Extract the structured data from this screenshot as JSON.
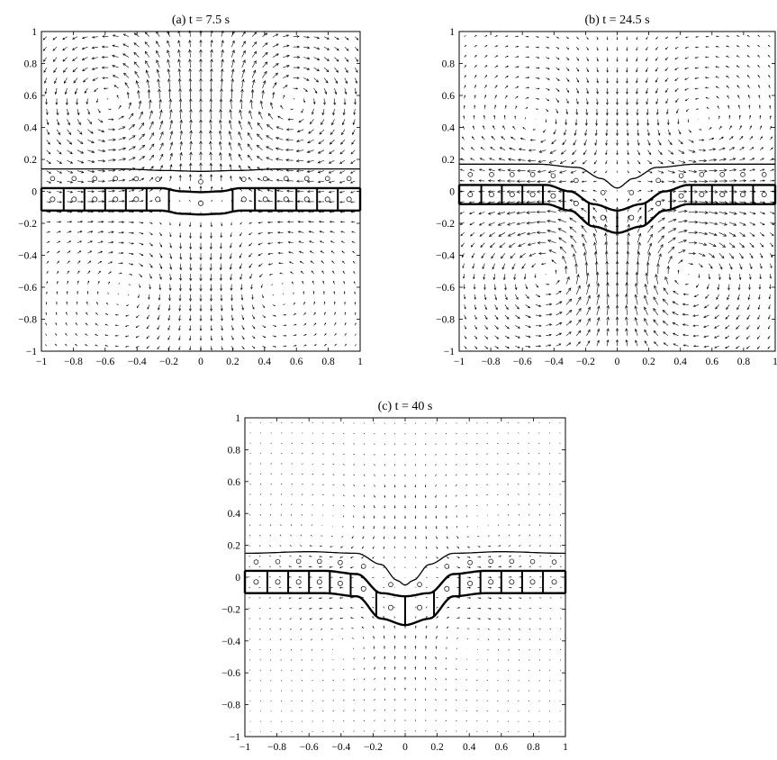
{
  "chart_data": [
    {
      "type": "quiver",
      "title": "(a) t = 7.5 s",
      "xlabel": "",
      "ylabel": "",
      "xlim": [
        -1,
        1
      ],
      "ylim": [
        -1,
        1
      ],
      "xticks": [
        "−1",
        "−0.8",
        "−0.6",
        "−0.4",
        "−0.2",
        "0",
        "0.2",
        "0.4",
        "0.6",
        "0.8",
        "1"
      ],
      "yticks": [
        "−1",
        "−0.8",
        "−0.6",
        "−0.4",
        "−0.2",
        "0",
        "0.2",
        "0.4",
        "0.6",
        "0.8",
        "1"
      ],
      "upper_interface": {
        "x": [
          -1,
          -0.5,
          -0.2,
          0,
          0.2,
          0.5,
          1
        ],
        "y": [
          0.14,
          0.14,
          0.13,
          0.125,
          0.13,
          0.14,
          0.14
        ]
      },
      "membrane_top": {
        "x": [
          -1,
          -0.25,
          -0.12,
          0,
          0.12,
          0.25,
          1
        ],
        "y": [
          0.02,
          0.02,
          0.0,
          -0.005,
          0.0,
          0.02,
          0.02
        ]
      },
      "membrane_bottom": {
        "x": [
          -1,
          -0.25,
          -0.12,
          0,
          0.12,
          0.25,
          1
        ],
        "y": [
          -0.12,
          -0.12,
          -0.14,
          -0.145,
          -0.14,
          -0.12,
          -0.12
        ]
      },
      "cell_dividers_x": [
        -0.86,
        -0.73,
        -0.6,
        -0.47,
        -0.34,
        -0.2,
        0.2,
        0.34,
        0.47,
        0.6,
        0.73,
        0.86
      ],
      "vortices": [
        {
          "x": -0.55,
          "y": 0.55,
          "strength": 1.0,
          "sense": "ccw"
        },
        {
          "x": 0.55,
          "y": 0.55,
          "strength": 1.0,
          "sense": "cw"
        },
        {
          "x": -0.45,
          "y": -0.6,
          "strength": 0.55,
          "sense": "cw"
        },
        {
          "x": 0.45,
          "y": -0.6,
          "strength": 0.55,
          "sense": "ccw"
        }
      ],
      "source": {
        "x": 0,
        "y": -0.08,
        "strength": 0.6
      }
    },
    {
      "type": "quiver",
      "title": "(b) t = 24.5 s",
      "xlabel": "",
      "ylabel": "",
      "xlim": [
        -1,
        1
      ],
      "ylim": [
        -1,
        1
      ],
      "xticks": [
        "−1",
        "−0.8",
        "−0.6",
        "−0.4",
        "−0.2",
        "0",
        "0.2",
        "0.4",
        "0.6",
        "0.8",
        "1"
      ],
      "yticks": [
        "−1",
        "−0.8",
        "−0.6",
        "−0.4",
        "−0.2",
        "0",
        "0.2",
        "0.4",
        "0.6",
        "0.8",
        "1"
      ],
      "upper_interface": {
        "x": [
          -1,
          -0.5,
          -0.25,
          -0.1,
          0,
          0.1,
          0.25,
          0.5,
          1
        ],
        "y": [
          0.17,
          0.17,
          0.15,
          0.08,
          0.02,
          0.08,
          0.15,
          0.17,
          0.17
        ]
      },
      "membrane_top": {
        "x": [
          -1,
          -0.45,
          -0.3,
          -0.15,
          0,
          0.15,
          0.3,
          0.45,
          1
        ],
        "y": [
          0.04,
          0.04,
          0.0,
          -0.08,
          -0.12,
          -0.08,
          0.0,
          0.04,
          0.04
        ]
      },
      "membrane_bottom": {
        "x": [
          -1,
          -0.45,
          -0.3,
          -0.15,
          0,
          0.15,
          0.3,
          0.45,
          1
        ],
        "y": [
          -0.08,
          -0.08,
          -0.12,
          -0.22,
          -0.26,
          -0.22,
          -0.12,
          -0.08,
          -0.08
        ]
      },
      "cell_dividers_x": [
        -0.86,
        -0.73,
        -0.6,
        -0.47,
        -0.34,
        -0.18,
        0.0,
        0.18,
        0.34,
        0.47,
        0.6,
        0.73,
        0.86
      ],
      "vortices": [
        {
          "x": -0.5,
          "y": 0.4,
          "strength": 0.7,
          "sense": "cw"
        },
        {
          "x": 0.5,
          "y": 0.4,
          "strength": 0.7,
          "sense": "ccw"
        },
        {
          "x": -0.4,
          "y": -0.5,
          "strength": 1.1,
          "sense": "ccw"
        },
        {
          "x": 0.4,
          "y": -0.5,
          "strength": 1.1,
          "sense": "cw"
        }
      ],
      "source": {
        "x": 0,
        "y": -0.2,
        "strength": 0.0
      }
    },
    {
      "type": "quiver",
      "title": "(c) t = 40 s",
      "xlabel": "",
      "ylabel": "",
      "xlim": [
        -1,
        1
      ],
      "ylim": [
        -1,
        1
      ],
      "xticks": [
        "−1",
        "−0.8",
        "−0.6",
        "−0.4",
        "−0.2",
        "0",
        "0.2",
        "0.4",
        "0.6",
        "0.8",
        "1"
      ],
      "yticks": [
        "−1",
        "−0.8",
        "−0.6",
        "−0.4",
        "−0.2",
        "0",
        "0.2",
        "0.4",
        "0.6",
        "0.8",
        "1"
      ],
      "upper_interface": {
        "x": [
          -1,
          -0.6,
          -0.3,
          -0.15,
          -0.05,
          0,
          0.05,
          0.15,
          0.3,
          0.6,
          1
        ],
        "y": [
          0.15,
          0.16,
          0.15,
          0.08,
          -0.02,
          -0.05,
          -0.02,
          0.08,
          0.15,
          0.16,
          0.15
        ]
      },
      "membrane_top": {
        "x": [
          -1,
          -0.5,
          -0.3,
          -0.15,
          0,
          0.15,
          0.3,
          0.5,
          1
        ],
        "y": [
          0.04,
          0.04,
          0.02,
          -0.1,
          -0.12,
          -0.1,
          0.02,
          0.04,
          0.04
        ]
      },
      "membrane_bottom": {
        "x": [
          -1,
          -0.5,
          -0.3,
          -0.15,
          0,
          0.15,
          0.3,
          0.5,
          1
        ],
        "y": [
          -0.1,
          -0.1,
          -0.12,
          -0.26,
          -0.3,
          -0.26,
          -0.12,
          -0.1,
          -0.1
        ]
      },
      "cell_dividers_x": [
        -0.86,
        -0.73,
        -0.6,
        -0.47,
        -0.34,
        -0.18,
        0.0,
        0.18,
        0.34,
        0.47,
        0.6,
        0.73,
        0.86
      ],
      "vortices": [
        {
          "x": -0.45,
          "y": 0.3,
          "strength": 0.3,
          "sense": "cw"
        },
        {
          "x": 0.45,
          "y": 0.3,
          "strength": 0.3,
          "sense": "ccw"
        },
        {
          "x": -0.35,
          "y": -0.4,
          "strength": 0.3,
          "sense": "ccw"
        },
        {
          "x": 0.35,
          "y": -0.4,
          "strength": 0.3,
          "sense": "cw"
        }
      ],
      "source": {
        "x": 0,
        "y": -0.2,
        "strength": 0.0
      }
    }
  ]
}
